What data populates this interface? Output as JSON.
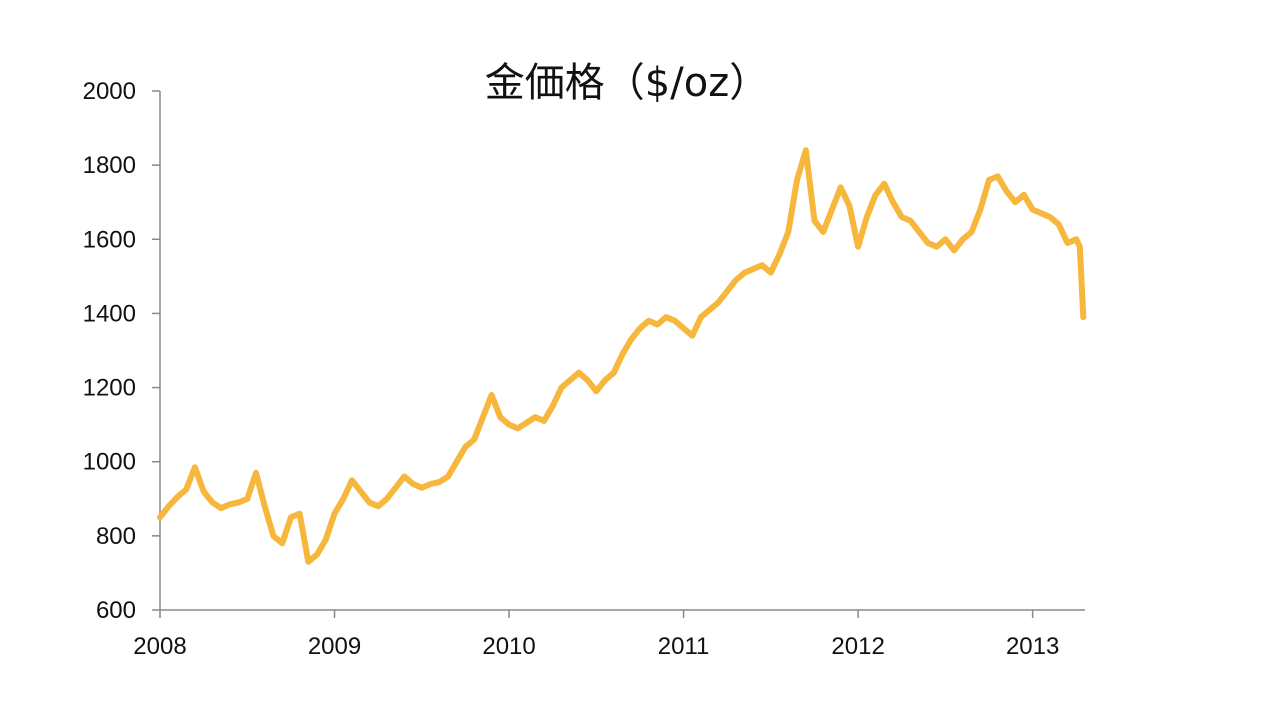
{
  "chart_data": {
    "type": "line",
    "title": "金価格（$/oz）",
    "xlabel": "",
    "ylabel": "",
    "ylim": [
      600,
      2000
    ],
    "yticks": [
      600,
      800,
      1000,
      1200,
      1400,
      1600,
      1800,
      2000
    ],
    "xlim": [
      2008.0,
      2013.3
    ],
    "xticks": [
      2008,
      2009,
      2010,
      2011,
      2012,
      2013
    ],
    "grid": false,
    "line_color": "#F6B73C",
    "series": [
      {
        "x": [
          2008.0,
          2008.05,
          2008.1,
          2008.15,
          2008.2,
          2008.25,
          2008.3,
          2008.35,
          2008.4,
          2008.45,
          2008.5,
          2008.55,
          2008.6,
          2008.65,
          2008.7,
          2008.75,
          2008.8,
          2008.85,
          2008.9,
          2008.95,
          2009.0,
          2009.05,
          2009.1,
          2009.15,
          2009.2,
          2009.25,
          2009.3,
          2009.35,
          2009.4,
          2009.45,
          2009.5,
          2009.55,
          2009.6,
          2009.65,
          2009.7,
          2009.75,
          2009.8,
          2009.85,
          2009.9,
          2009.95,
          2010.0,
          2010.05,
          2010.1,
          2010.15,
          2010.2,
          2010.25,
          2010.3,
          2010.35,
          2010.4,
          2010.45,
          2010.5,
          2010.55,
          2010.6,
          2010.65,
          2010.7,
          2010.75,
          2010.8,
          2010.85,
          2010.9,
          2010.95,
          2011.0,
          2011.05,
          2011.1,
          2011.15,
          2011.2,
          2011.25,
          2011.3,
          2011.35,
          2011.4,
          2011.45,
          2011.5,
          2011.55,
          2011.6,
          2011.65,
          2011.7,
          2011.75,
          2011.8,
          2011.85,
          2011.9,
          2011.95,
          2012.0,
          2012.05,
          2012.1,
          2012.15,
          2012.2,
          2012.25,
          2012.3,
          2012.35,
          2012.4,
          2012.45,
          2012.5,
          2012.55,
          2012.6,
          2012.65,
          2012.7,
          2012.75,
          2012.8,
          2012.85,
          2012.9,
          2012.95,
          2013.0,
          2013.05,
          2013.1,
          2013.15,
          2013.2,
          2013.25,
          2013.27,
          2013.29
        ],
        "y": [
          850,
          880,
          905,
          925,
          985,
          920,
          890,
          875,
          885,
          890,
          900,
          970,
          880,
          800,
          780,
          850,
          860,
          730,
          750,
          790,
          860,
          900,
          950,
          920,
          890,
          880,
          900,
          930,
          960,
          940,
          930,
          940,
          945,
          960,
          1000,
          1040,
          1060,
          1120,
          1180,
          1120,
          1100,
          1090,
          1105,
          1120,
          1110,
          1150,
          1200,
          1220,
          1240,
          1220,
          1190,
          1220,
          1240,
          1290,
          1330,
          1360,
          1380,
          1370,
          1390,
          1380,
          1360,
          1340,
          1390,
          1410,
          1430,
          1460,
          1490,
          1510,
          1520,
          1530,
          1510,
          1560,
          1620,
          1760,
          1840,
          1650,
          1620,
          1680,
          1740,
          1690,
          1580,
          1660,
          1720,
          1750,
          1700,
          1660,
          1650,
          1620,
          1590,
          1580,
          1600,
          1570,
          1600,
          1620,
          1680,
          1760,
          1770,
          1730,
          1700,
          1720,
          1680,
          1670,
          1660,
          1640,
          1590,
          1600,
          1580,
          1390
        ]
      }
    ]
  }
}
